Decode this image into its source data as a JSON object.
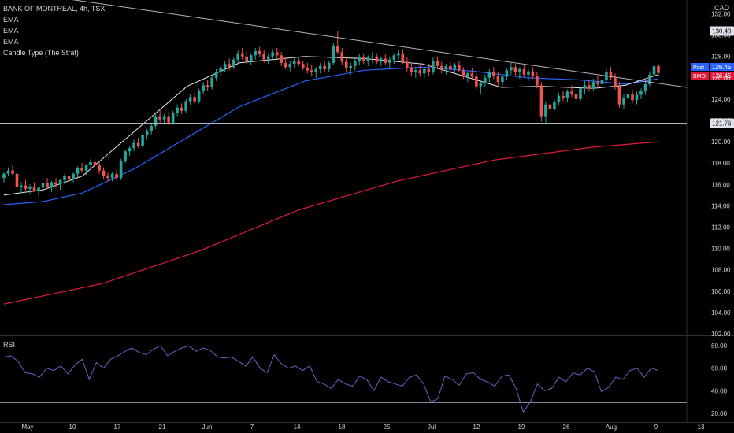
{
  "header": {
    "symbol_line": "BANK OF MONTREAL, 4h, TSX",
    "indicators": [
      "EMA",
      "EMA",
      "EMA",
      "Candle Type (The Strat)"
    ],
    "currency": "CAD",
    "rsi_label": "RSI"
  },
  "colors": {
    "background": "#000000",
    "up": "#26a69a",
    "down": "#ef5350",
    "ema_fast": "#e8e8e8",
    "ema_mid": "#2962ff",
    "ema_slow": "#e0193a",
    "rsi": "#7e57c2",
    "hline": "#b2b5be",
    "badge_post": "#2962ff",
    "badge_bmo": "#e0193a"
  },
  "chart_data": {
    "type": "candlestick",
    "price_axis": {
      "ticks": [
        "132.00",
        "130.00",
        "128.00",
        "126.00",
        "124.00",
        "122.00",
        "120.00",
        "118.00",
        "116.00",
        "114.00",
        "112.00",
        "110.00",
        "108.00",
        "106.00",
        "104.00",
        "102.00"
      ],
      "range": [
        102,
        132.7
      ]
    },
    "x_axis": {
      "labels": [
        "May",
        "10",
        "17",
        "21",
        "Jun",
        "7",
        "14",
        "18",
        "25",
        "Jul",
        "12",
        "19",
        "26",
        "Aug",
        "9",
        "13"
      ]
    },
    "horizontal_lines": [
      {
        "value": 130.4,
        "label": "130.40"
      },
      {
        "value": 121.76,
        "label": "121.76"
      }
    ],
    "trendline": {
      "from": [
        -0.03,
        134.5
      ],
      "to": [
        1.0,
        126.3
      ]
    },
    "badges": [
      {
        "name": "Post",
        "value": "126.45"
      },
      {
        "name": "BMO",
        "value": "126.45"
      }
    ],
    "candles": [
      [
        116.6,
        117.2,
        116.1,
        117.0
      ],
      [
        117.0,
        117.6,
        116.8,
        117.3
      ],
      [
        117.3,
        117.8,
        116.9,
        117.0
      ],
      [
        117.0,
        117.2,
        115.6,
        115.8
      ],
      [
        115.8,
        116.2,
        115.2,
        115.9
      ],
      [
        115.9,
        116.4,
        115.4,
        115.6
      ],
      [
        115.6,
        116.0,
        115.1,
        115.8
      ],
      [
        115.8,
        116.2,
        115.3,
        115.4
      ],
      [
        115.4,
        115.8,
        114.9,
        115.7
      ],
      [
        115.7,
        116.3,
        115.3,
        116.1
      ],
      [
        116.1,
        116.6,
        115.6,
        115.8
      ],
      [
        115.8,
        116.3,
        115.3,
        116.2
      ],
      [
        116.2,
        116.6,
        115.7,
        116.0
      ],
      [
        116.0,
        116.5,
        115.5,
        116.4
      ],
      [
        116.4,
        117.0,
        116.0,
        116.8
      ],
      [
        116.8,
        117.2,
        116.3,
        116.5
      ],
      [
        116.5,
        117.1,
        116.2,
        117.0
      ],
      [
        117.0,
        117.7,
        116.7,
        117.5
      ],
      [
        117.5,
        118.0,
        117.1,
        117.3
      ],
      [
        117.3,
        117.9,
        116.9,
        117.8
      ],
      [
        117.8,
        118.4,
        117.4,
        118.1
      ],
      [
        118.1,
        118.6,
        117.7,
        117.8
      ],
      [
        117.8,
        118.1,
        117.0,
        117.3
      ],
      [
        117.3,
        117.6,
        116.5,
        116.8
      ],
      [
        116.8,
        117.1,
        116.3,
        116.6
      ],
      [
        116.6,
        117.2,
        116.3,
        117.0
      ],
      [
        117.0,
        117.4,
        116.4,
        116.6
      ],
      [
        116.6,
        118.4,
        116.4,
        118.2
      ],
      [
        118.2,
        119.3,
        118.0,
        119.1
      ],
      [
        119.1,
        119.6,
        118.7,
        119.4
      ],
      [
        119.4,
        120.2,
        119.1,
        119.9
      ],
      [
        119.9,
        120.4,
        119.4,
        119.6
      ],
      [
        119.6,
        120.8,
        119.4,
        120.6
      ],
      [
        120.6,
        121.2,
        120.2,
        121.0
      ],
      [
        121.0,
        121.8,
        120.7,
        121.5
      ],
      [
        121.5,
        122.6,
        121.2,
        122.4
      ],
      [
        122.4,
        123.0,
        121.8,
        122.1
      ],
      [
        122.1,
        122.6,
        121.6,
        122.4
      ],
      [
        122.4,
        122.8,
        121.5,
        121.8
      ],
      [
        121.8,
        122.9,
        121.6,
        122.7
      ],
      [
        122.7,
        123.5,
        122.4,
        123.2
      ],
      [
        123.2,
        123.6,
        122.6,
        122.9
      ],
      [
        122.9,
        124.0,
        122.7,
        123.8
      ],
      [
        123.8,
        124.5,
        123.4,
        124.2
      ],
      [
        124.2,
        124.6,
        123.5,
        123.8
      ],
      [
        123.8,
        125.0,
        123.6,
        124.8
      ],
      [
        124.8,
        125.6,
        124.5,
        125.3
      ],
      [
        125.3,
        125.8,
        124.8,
        125.1
      ],
      [
        125.1,
        126.2,
        124.9,
        126.0
      ],
      [
        126.0,
        126.8,
        125.7,
        126.5
      ],
      [
        126.5,
        127.2,
        126.1,
        126.9
      ],
      [
        126.9,
        127.6,
        126.5,
        127.3
      ],
      [
        127.3,
        127.8,
        126.7,
        127.0
      ],
      [
        127.0,
        127.9,
        126.8,
        127.7
      ],
      [
        127.7,
        128.6,
        127.4,
        128.3
      ],
      [
        128.3,
        128.8,
        127.7,
        128.0
      ],
      [
        128.0,
        128.5,
        127.3,
        127.6
      ],
      [
        127.6,
        128.3,
        127.2,
        128.1
      ],
      [
        128.1,
        128.8,
        127.7,
        128.5
      ],
      [
        128.5,
        128.9,
        127.9,
        128.2
      ],
      [
        128.2,
        128.6,
        127.4,
        127.7
      ],
      [
        127.7,
        128.3,
        127.3,
        128.0
      ],
      [
        128.0,
        128.7,
        127.6,
        128.4
      ],
      [
        128.4,
        128.8,
        127.8,
        128.1
      ],
      [
        128.1,
        128.4,
        127.1,
        127.4
      ],
      [
        127.4,
        127.9,
        126.8,
        127.0
      ],
      [
        127.0,
        127.6,
        126.6,
        127.3
      ],
      [
        127.3,
        127.9,
        126.9,
        127.6
      ],
      [
        127.6,
        128.0,
        127.1,
        127.3
      ],
      [
        127.3,
        127.6,
        126.7,
        126.9
      ],
      [
        126.9,
        127.4,
        126.4,
        126.7
      ],
      [
        126.7,
        127.2,
        126.2,
        126.5
      ],
      [
        126.5,
        127.0,
        126.0,
        126.8
      ],
      [
        126.8,
        127.4,
        126.4,
        127.1
      ],
      [
        127.1,
        127.5,
        126.5,
        126.8
      ],
      [
        126.8,
        127.6,
        126.5,
        127.4
      ],
      [
        127.4,
        129.3,
        127.2,
        129.0
      ],
      [
        129.0,
        130.4,
        128.2,
        128.4
      ],
      [
        128.4,
        128.8,
        127.2,
        127.5
      ],
      [
        127.5,
        127.9,
        126.5,
        126.9
      ],
      [
        126.9,
        127.4,
        126.3,
        127.1
      ],
      [
        127.1,
        127.8,
        126.7,
        127.6
      ],
      [
        127.6,
        128.2,
        127.2,
        127.9
      ],
      [
        127.9,
        128.3,
        127.3,
        127.6
      ],
      [
        127.6,
        128.1,
        127.1,
        127.9
      ],
      [
        127.9,
        128.4,
        127.4,
        128.0
      ],
      [
        128.0,
        128.3,
        127.3,
        127.5
      ],
      [
        127.5,
        128.0,
        127.1,
        127.8
      ],
      [
        127.8,
        128.2,
        127.2,
        127.4
      ],
      [
        127.4,
        127.9,
        126.9,
        127.7
      ],
      [
        127.7,
        128.3,
        127.3,
        128.1
      ],
      [
        128.1,
        128.6,
        127.7,
        128.3
      ],
      [
        128.3,
        128.7,
        127.3,
        127.5
      ],
      [
        127.5,
        127.9,
        126.6,
        126.9
      ],
      [
        126.9,
        127.3,
        126.2,
        126.5
      ],
      [
        126.5,
        127.0,
        126.0,
        126.7
      ],
      [
        126.7,
        127.2,
        126.1,
        126.4
      ],
      [
        126.4,
        127.0,
        126.0,
        126.8
      ],
      [
        126.8,
        127.3,
        126.2,
        126.5
      ],
      [
        126.5,
        127.9,
        126.3,
        127.6
      ],
      [
        127.6,
        128.0,
        126.8,
        127.1
      ],
      [
        127.1,
        127.5,
        126.4,
        126.8
      ],
      [
        126.8,
        127.3,
        126.3,
        127.1
      ],
      [
        127.1,
        127.5,
        126.5,
        126.8
      ],
      [
        126.8,
        127.4,
        126.4,
        127.2
      ],
      [
        127.2,
        127.6,
        126.5,
        126.7
      ],
      [
        126.7,
        127.0,
        125.9,
        126.1
      ],
      [
        126.1,
        126.6,
        125.6,
        126.4
      ],
      [
        126.4,
        126.9,
        125.8,
        126.1
      ],
      [
        126.1,
        126.4,
        124.9,
        125.2
      ],
      [
        125.2,
        125.8,
        124.5,
        125.5
      ],
      [
        125.5,
        126.3,
        125.2,
        126.0
      ],
      [
        126.0,
        126.8,
        125.6,
        126.5
      ],
      [
        126.5,
        127.0,
        125.9,
        126.2
      ],
      [
        126.2,
        126.6,
        125.3,
        125.6
      ],
      [
        125.6,
        126.3,
        125.2,
        126.1
      ],
      [
        126.1,
        126.9,
        125.8,
        126.7
      ],
      [
        126.7,
        127.4,
        126.3,
        127.0
      ],
      [
        127.0,
        127.3,
        126.2,
        126.5
      ],
      [
        126.5,
        127.0,
        125.9,
        126.8
      ],
      [
        126.8,
        127.2,
        126.1,
        126.3
      ],
      [
        126.3,
        126.8,
        125.7,
        126.6
      ],
      [
        126.6,
        127.0,
        125.9,
        126.2
      ],
      [
        126.2,
        126.5,
        125.0,
        125.3
      ],
      [
        125.3,
        125.6,
        121.9,
        122.4
      ],
      [
        122.4,
        123.8,
        121.8,
        123.5
      ],
      [
        123.5,
        124.2,
        122.8,
        123.1
      ],
      [
        123.1,
        124.0,
        122.9,
        123.7
      ],
      [
        123.7,
        124.6,
        123.4,
        124.3
      ],
      [
        124.3,
        124.8,
        123.8,
        124.1
      ],
      [
        124.1,
        124.9,
        123.7,
        124.7
      ],
      [
        124.7,
        125.3,
        124.2,
        124.5
      ],
      [
        124.5,
        125.0,
        123.8,
        124.0
      ],
      [
        124.0,
        125.2,
        123.8,
        125.0
      ],
      [
        125.0,
        125.7,
        124.5,
        125.3
      ],
      [
        125.3,
        125.8,
        124.7,
        125.0
      ],
      [
        125.0,
        125.9,
        124.8,
        125.6
      ],
      [
        125.6,
        126.2,
        125.1,
        125.4
      ],
      [
        125.4,
        126.0,
        125.0,
        125.8
      ],
      [
        125.8,
        126.8,
        125.5,
        126.5
      ],
      [
        126.5,
        127.0,
        125.8,
        126.0
      ],
      [
        126.0,
        126.4,
        124.9,
        125.2
      ],
      [
        125.2,
        125.6,
        123.2,
        123.5
      ],
      [
        123.5,
        124.4,
        123.1,
        124.1
      ],
      [
        124.1,
        124.8,
        123.7,
        124.5
      ],
      [
        124.5,
        124.9,
        123.6,
        123.9
      ],
      [
        123.9,
        124.7,
        123.5,
        124.4
      ],
      [
        124.4,
        125.0,
        124.0,
        124.8
      ],
      [
        124.8,
        125.6,
        124.4,
        125.4
      ],
      [
        125.4,
        126.6,
        125.2,
        126.3
      ],
      [
        126.3,
        127.4,
        126.0,
        127.1
      ],
      [
        127.1,
        127.3,
        126.2,
        126.45
      ]
    ],
    "ema_fast": [
      [
        0.0,
        115.0
      ],
      [
        0.06,
        115.5
      ],
      [
        0.12,
        116.8
      ],
      [
        0.2,
        121.0
      ],
      [
        0.28,
        125.2
      ],
      [
        0.36,
        127.4
      ],
      [
        0.46,
        128.0
      ],
      [
        0.55,
        127.8
      ],
      [
        0.64,
        127.3
      ],
      [
        0.7,
        126.2
      ],
      [
        0.76,
        125.1
      ],
      [
        0.82,
        125.2
      ],
      [
        0.9,
        125.0
      ],
      [
        0.95,
        125.3
      ],
      [
        1.0,
        126.3
      ]
    ],
    "ema_mid": [
      [
        0.0,
        114.1
      ],
      [
        0.06,
        114.4
      ],
      [
        0.12,
        115.2
      ],
      [
        0.2,
        117.5
      ],
      [
        0.28,
        120.4
      ],
      [
        0.36,
        123.3
      ],
      [
        0.46,
        125.7
      ],
      [
        0.55,
        126.7
      ],
      [
        0.64,
        127.0
      ],
      [
        0.72,
        126.6
      ],
      [
        0.8,
        126.0
      ],
      [
        0.88,
        125.8
      ],
      [
        0.95,
        125.4
      ],
      [
        1.0,
        125.9
      ]
    ],
    "ema_slow": [
      [
        0.0,
        104.8
      ],
      [
        0.15,
        106.7
      ],
      [
        0.3,
        109.8
      ],
      [
        0.45,
        113.6
      ],
      [
        0.6,
        116.3
      ],
      [
        0.75,
        118.3
      ],
      [
        0.9,
        119.5
      ],
      [
        1.0,
        120.0
      ]
    ],
    "rsi": {
      "ticks": [
        "80.00",
        "60.00",
        "40.00",
        "20.00"
      ],
      "range": [
        15,
        85
      ],
      "bands": [
        70,
        30
      ],
      "values": [
        70,
        71,
        66,
        56,
        55,
        52,
        60,
        58,
        62,
        55,
        63,
        68,
        50,
        65,
        60,
        68,
        71,
        75,
        78,
        74,
        72,
        77,
        80,
        71,
        75,
        78,
        80,
        75,
        78,
        76,
        70,
        69,
        70,
        66,
        62,
        70,
        60,
        56,
        72,
        64,
        60,
        62,
        58,
        62,
        48,
        46,
        42,
        50,
        46,
        44,
        53,
        50,
        40,
        52,
        48,
        46,
        44,
        52,
        54,
        46,
        30,
        33,
        53,
        50,
        45,
        55,
        56,
        50,
        48,
        44,
        53,
        54,
        42,
        21,
        30,
        46,
        40,
        42,
        52,
        48,
        56,
        54,
        60,
        57,
        39,
        43,
        52,
        50,
        58,
        60,
        52,
        60,
        58
      ]
    }
  }
}
